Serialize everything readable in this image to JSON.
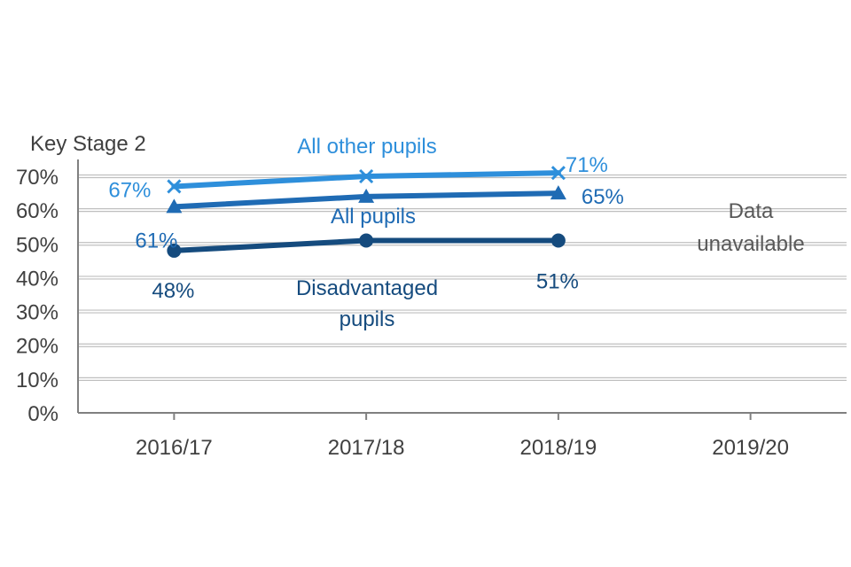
{
  "colors": {
    "all_other_pupils": "#2E8FDB",
    "all_pupils": "#1F6BB4",
    "disadvantaged_pupils": "#154B7E",
    "axis": "#808080",
    "grid": "#BFBFBF",
    "text": "#404040"
  },
  "chart_data": {
    "type": "line",
    "title": "Key Stage 2",
    "xlabel": "",
    "ylabel": "",
    "categories": [
      "2016/17",
      "2017/18",
      "2018/19",
      "2019/20"
    ],
    "y_ticks": [
      "0%",
      "10%",
      "20%",
      "30%",
      "40%",
      "50%",
      "60%",
      "70%"
    ],
    "ylim": [
      0,
      70
    ],
    "grid": true,
    "legend": "none",
    "series": [
      {
        "name": "All other pupils",
        "marker": "x",
        "values": [
          67,
          70,
          71,
          null
        ],
        "labels": [
          "67%",
          "",
          "71%",
          ""
        ]
      },
      {
        "name": "All pupils",
        "marker": "triangle",
        "values": [
          61,
          64,
          65,
          null
        ],
        "labels": [
          "61%",
          "",
          "65%",
          ""
        ]
      },
      {
        "name": "Disadvantaged pupils",
        "marker": "circle",
        "values": [
          48,
          51,
          51,
          null
        ],
        "labels": [
          "48%",
          "",
          "51%",
          ""
        ]
      }
    ],
    "annotations": {
      "series_label_1": "All other pupils",
      "series_label_2": "All pupils",
      "series_label_3_line1": "Disadvantaged",
      "series_label_3_line2": "pupils",
      "note_line1": "Data",
      "note_line2": "unavailable"
    }
  }
}
